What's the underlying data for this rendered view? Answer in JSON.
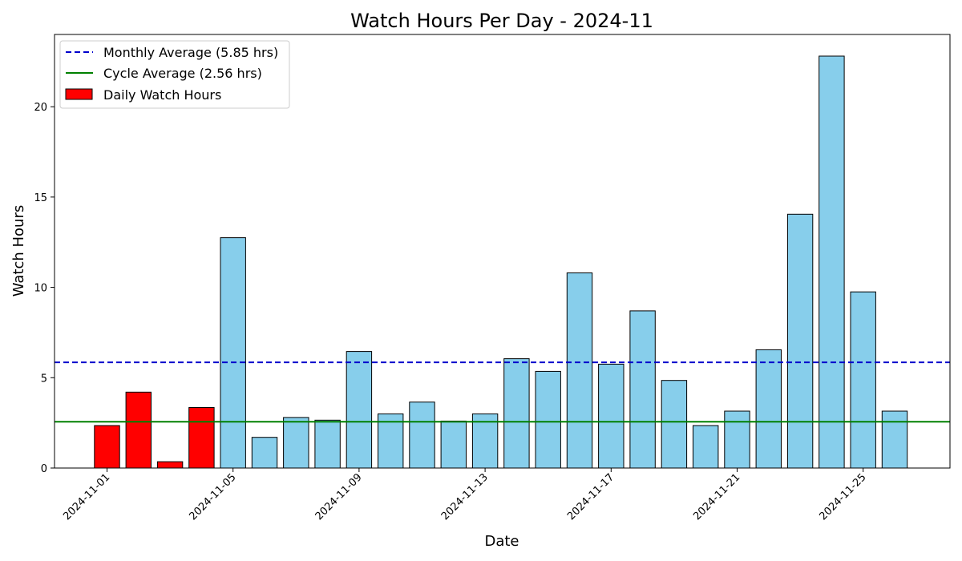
{
  "chart_data": {
    "type": "bar",
    "title": "Watch Hours Per Day - 2024-11",
    "xlabel": "Date",
    "ylabel": "Watch Hours",
    "ylim": [
      0,
      24
    ],
    "y_ticks": [
      0,
      5,
      10,
      15,
      20
    ],
    "x_tick_labels": [
      "2024-11-01",
      "2024-11-05",
      "2024-11-09",
      "2024-11-13",
      "2024-11-17",
      "2024-11-21",
      "2024-11-25"
    ],
    "grid": false,
    "legend_position": "top-left",
    "dates": [
      "2024-11-01",
      "2024-11-02",
      "2024-11-03",
      "2024-11-04",
      "2024-11-05",
      "2024-11-06",
      "2024-11-07",
      "2024-11-08",
      "2024-11-09",
      "2024-11-10",
      "2024-11-11",
      "2024-11-12",
      "2024-11-13",
      "2024-11-14",
      "2024-11-15",
      "2024-11-16",
      "2024-11-17",
      "2024-11-18",
      "2024-11-19",
      "2024-11-20",
      "2024-11-21",
      "2024-11-22",
      "2024-11-23",
      "2024-11-24",
      "2024-11-25",
      "2024-11-26"
    ],
    "values": [
      2.35,
      4.2,
      0.35,
      3.35,
      12.75,
      1.7,
      2.8,
      2.65,
      6.45,
      3.0,
      3.65,
      2.6,
      3.0,
      6.05,
      5.35,
      10.8,
      5.75,
      8.7,
      4.85,
      2.35,
      3.15,
      6.55,
      14.05,
      22.8,
      9.75,
      3.15
    ],
    "highlighted_days": 4,
    "colors": {
      "highlight": "#ff0000",
      "normal": "#87ceeb",
      "edge": "#000000",
      "monthly_avg": "#0000cc",
      "cycle_avg": "#008000"
    },
    "reference_lines": [
      {
        "name": "Monthly Average (5.85 hrs)",
        "value": 5.85,
        "style": "dashed"
      },
      {
        "name": "Cycle Average (2.56 hrs)",
        "value": 2.56,
        "style": "solid"
      }
    ],
    "legend": [
      {
        "label": "Monthly Average (5.85 hrs)",
        "kind": "dashed-line"
      },
      {
        "label": "Cycle Average (2.56 hrs)",
        "kind": "solid-line"
      },
      {
        "label": "Daily Watch Hours",
        "kind": "red-patch"
      }
    ]
  }
}
